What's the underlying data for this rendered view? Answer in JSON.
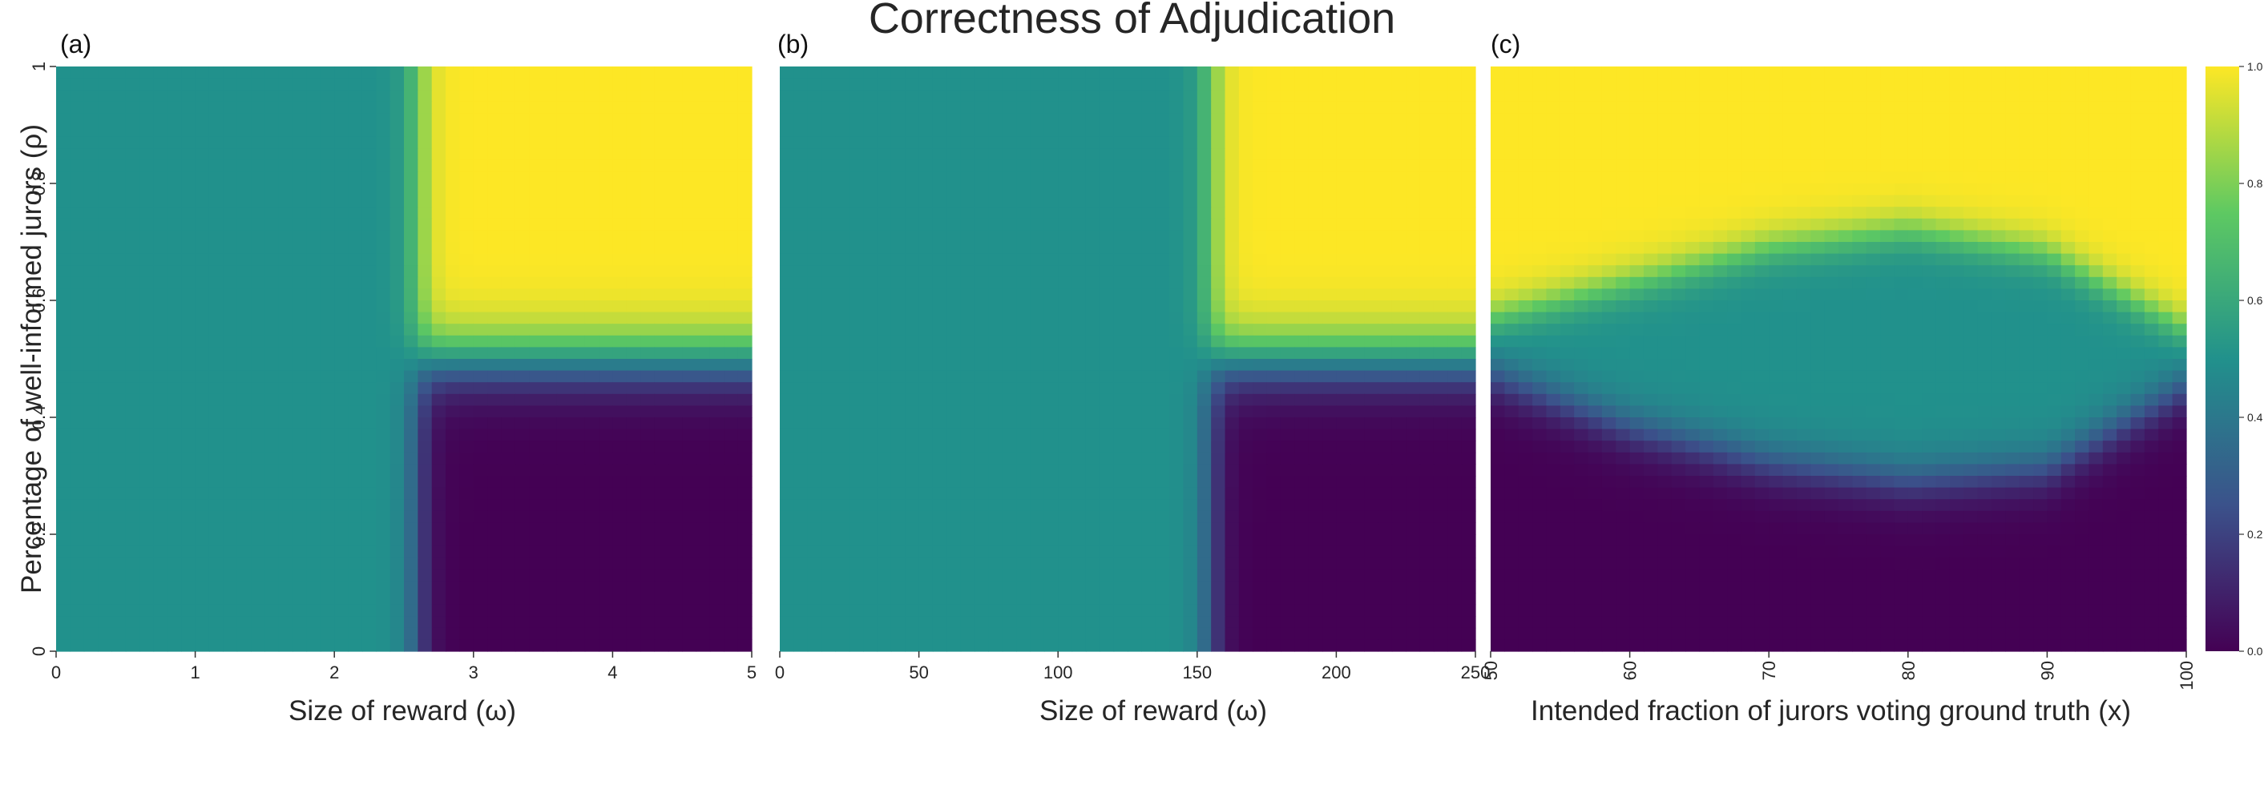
{
  "title": "Correctness of Adjudication",
  "ylabel": "Percentage of well-informed jurors (ρ)",
  "colormap": {
    "name": "viridis",
    "stops": [
      "#440154",
      "#3b528b",
      "#21918c",
      "#5ec962",
      "#fde725"
    ]
  },
  "colorbar": {
    "ticks": [
      "0.0",
      "0.2",
      "0.4",
      "0.6",
      "0.8",
      "1.0"
    ],
    "range": [
      0,
      1
    ]
  },
  "chart_data": [
    {
      "type": "heatmap",
      "panel": "(a)",
      "xlabel": "Size of reward (ω)",
      "ylabel": "Percentage of well-informed jurors (ρ)",
      "xlim": [
        0,
        5
      ],
      "ylim": [
        0,
        1
      ],
      "xticks": [
        "0",
        "1",
        "2",
        "3",
        "4",
        "5"
      ],
      "yticks": [
        "0",
        "0.2",
        "0.4",
        "0.6",
        "0.8",
        "1"
      ],
      "threshold_x": 2.6,
      "threshold_y": 0.5,
      "low_x_value": 0.5,
      "description_values": {
        "left_region": 0.5,
        "top_right": 1.0,
        "bottom_right": 0.0
      }
    },
    {
      "type": "heatmap",
      "panel": "(b)",
      "xlabel": "Size of reward (ω)",
      "xlim": [
        0,
        250
      ],
      "ylim": [
        0,
        1
      ],
      "xticks": [
        "0",
        "50",
        "100",
        "150",
        "200",
        "250"
      ],
      "threshold_x": 155,
      "threshold_y": 0.5,
      "low_x_value": 0.5,
      "description_values": {
        "left_region": 0.5,
        "top_right": 1.0,
        "bottom_right": 0.0
      }
    },
    {
      "type": "heatmap",
      "panel": "(c)",
      "xlabel": "Intended fraction of jurors voting ground truth (x)",
      "xlim": [
        50,
        100
      ],
      "ylim": [
        0,
        1
      ],
      "xticks": [
        "50",
        "60",
        "70",
        "80",
        "90",
        "100"
      ],
      "upper_boundary": [
        {
          "x": 50,
          "y": 0.57
        },
        {
          "x": 60,
          "y": 0.63
        },
        {
          "x": 70,
          "y": 0.69
        },
        {
          "x": 80,
          "y": 0.72
        },
        {
          "x": 90,
          "y": 0.68
        },
        {
          "x": 100,
          "y": 0.55
        }
      ],
      "lower_boundary": [
        {
          "x": 50,
          "y": 0.47
        },
        {
          "x": 60,
          "y": 0.38
        },
        {
          "x": 70,
          "y": 0.32
        },
        {
          "x": 80,
          "y": 0.29
        },
        {
          "x": 90,
          "y": 0.31
        },
        {
          "x": 100,
          "y": 0.45
        }
      ],
      "description_values": {
        "above": 1.0,
        "between": 0.5,
        "below": 0.0
      }
    }
  ]
}
